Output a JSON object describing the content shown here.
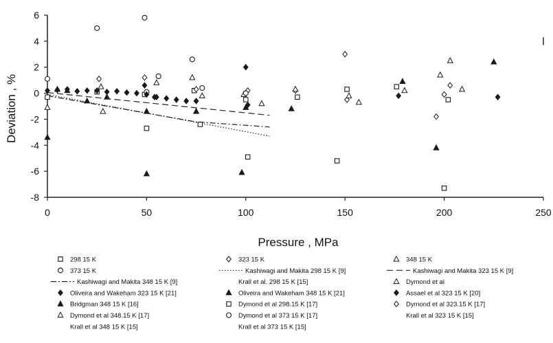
{
  "chart_data": {
    "type": "scatter",
    "title": "",
    "xlabel": "Pressure , MPa",
    "ylabel": "Deviation , %",
    "xlim": [
      0,
      250
    ],
    "ylim": [
      -8,
      6
    ],
    "x_ticks": [
      0,
      50,
      100,
      150,
      200,
      250
    ],
    "y_ticks": [
      -8,
      -6,
      -4,
      -2,
      0,
      2,
      4,
      6
    ],
    "x_tick_labels": [
      "0",
      "50",
      "100",
      "150",
      "200",
      "250"
    ],
    "y_tick_labels": [
      "-8",
      "-6",
      "-4",
      "-2",
      "0",
      "2",
      "4",
      "6"
    ],
    "grid": false,
    "legend_position": "bottom",
    "series": [
      {
        "name": "298 15 K",
        "marker": "square-open",
        "points": [
          [
            0,
            -0.3
          ],
          [
            25,
            0.1
          ],
          [
            49,
            -0.1
          ],
          [
            50,
            -2.7
          ],
          [
            74,
            0.2
          ],
          [
            77,
            -2.4
          ],
          [
            100,
            -0.5
          ],
          [
            101,
            -4.9
          ],
          [
            126,
            -0.3
          ],
          [
            146,
            -5.2
          ],
          [
            151,
            0.3
          ],
          [
            176,
            0.5
          ],
          [
            200,
            -7.3
          ],
          [
            202,
            -0.5
          ]
        ]
      },
      {
        "name": "323 15 K",
        "marker": "diamond-open",
        "points": [
          [
            26,
            1.1
          ],
          [
            49,
            1.2
          ],
          [
            75,
            0.3
          ],
          [
            101,
            0.2
          ],
          [
            125,
            0.2
          ],
          [
            150,
            3.0
          ],
          [
            151,
            -0.5
          ],
          [
            196,
            -1.8
          ],
          [
            200,
            -0.1
          ],
          [
            203,
            0.6
          ]
        ]
      },
      {
        "name": "348 15 K",
        "marker": "triangle-open",
        "points": [
          [
            0,
            -1.1
          ],
          [
            27,
            0.5
          ],
          [
            28,
            -1.4
          ],
          [
            55,
            0.8
          ],
          [
            73,
            1.2
          ],
          [
            78,
            -0.2
          ],
          [
            99,
            -0.1
          ],
          [
            108,
            -0.8
          ],
          [
            125,
            0.3
          ],
          [
            152,
            -0.2
          ],
          [
            157,
            -0.7
          ],
          [
            180,
            0.2
          ],
          [
            198,
            1.4
          ],
          [
            203,
            2.5
          ],
          [
            209,
            0.3
          ]
        ]
      },
      {
        "name": "373 15 K",
        "marker": "circle-open",
        "points": [
          [
            0,
            1.1
          ],
          [
            25,
            5.0
          ],
          [
            49,
            5.8
          ],
          [
            50,
            0.1
          ],
          [
            56,
            1.3
          ],
          [
            73,
            2.6
          ],
          [
            78,
            0.4
          ],
          [
            100,
            0.0
          ]
        ]
      },
      {
        "name": "Kashiwagi and Makita 298 15 K [9]",
        "style": "dotted-line",
        "points": [
          [
            0,
            -0.1
          ],
          [
            112,
            -3.3
          ]
        ]
      },
      {
        "name": "Kashiwagi and Makita 323 15 K [9]",
        "style": "dashed-line",
        "points": [
          [
            0,
            0.05
          ],
          [
            112,
            -1.7
          ]
        ]
      },
      {
        "name": "Kashiwagi and Makita 348 15 K [9]",
        "style": "dash-dot-line",
        "points": [
          [
            0,
            -0.2
          ],
          [
            75,
            -2.2
          ],
          [
            112,
            -2.6
          ]
        ]
      },
      {
        "name": "Krall et al. 298 15 K [15]",
        "style": "none",
        "points": []
      },
      {
        "name": "Dymond et al",
        "marker": "triangle-open",
        "points": []
      },
      {
        "name": "Oliveira and Wakeham 323 15 K [21]",
        "marker": "diamond-filled",
        "points": [
          [
            0,
            0.2
          ],
          [
            5,
            0.25
          ],
          [
            10,
            0.3
          ],
          [
            15,
            0.15
          ],
          [
            20,
            0.2
          ],
          [
            25,
            0.2
          ],
          [
            30,
            0.1
          ],
          [
            35,
            0.15
          ],
          [
            40,
            0.05
          ],
          [
            45,
            0.0
          ],
          [
            50,
            -0.1
          ],
          [
            55,
            -0.3
          ],
          [
            60,
            -0.4
          ],
          [
            65,
            -0.5
          ],
          [
            70,
            -0.6
          ],
          [
            75,
            -0.6
          ]
        ]
      },
      {
        "name": "Oliveira and Wakeham 348 15 K [21]",
        "marker": "triangle-filled",
        "points": [
          [
            0,
            -3.4
          ],
          [
            5,
            0.3
          ],
          [
            10,
            0.2
          ],
          [
            20,
            -0.6
          ],
          [
            30,
            -0.3
          ],
          [
            50,
            -6.2
          ],
          [
            50,
            -1.4
          ],
          [
            75,
            -1.4
          ],
          [
            98,
            -6.1
          ],
          [
            100,
            -1.1
          ],
          [
            123,
            -1.2
          ],
          [
            179,
            0.9
          ],
          [
            196,
            -4.2
          ],
          [
            225,
            2.4
          ]
        ]
      },
      {
        "name": "Assael et al 323 15 K [20]",
        "marker": "diamond-filled",
        "points": [
          [
            49,
            0.6
          ],
          [
            54,
            -0.3
          ],
          [
            100,
            2.0
          ],
          [
            101,
            -0.9
          ],
          [
            177,
            -0.2
          ],
          [
            227,
            -0.3
          ]
        ]
      },
      {
        "name": "Bridgman 348 15 K [16]",
        "marker": "triangle-filled",
        "points": []
      },
      {
        "name": "Dymond et al 298.15 K [17]",
        "marker": "square-open",
        "points": []
      },
      {
        "name": "Dymond et al 323.15 K [17]",
        "marker": "diamond-open",
        "points": []
      },
      {
        "name": "Dymond et al 348.15 K [17]",
        "marker": "triangle-open",
        "points": []
      },
      {
        "name": "Dymond et al 373 15 K [17]",
        "marker": "circle-open",
        "points": []
      },
      {
        "name": "Krall et al 323 15 K [15]",
        "style": "none",
        "points": []
      },
      {
        "name": "Krall et al 348 15 K [15]",
        "style": "none",
        "points": []
      },
      {
        "name": "Krall et al 373 15 K [15]",
        "style": "none",
        "points": []
      }
    ]
  },
  "legend": [
    {
      "label": "298 15 K",
      "symbol": "square-open"
    },
    {
      "label": "323 15 K",
      "symbol": "diamond-open"
    },
    {
      "label": "348 15 K",
      "symbol": "triangle-open"
    },
    {
      "label": "373 15 K",
      "symbol": "circle-open"
    },
    {
      "label": "Kashiwagi and Makita 298 15 K [9]",
      "symbol": "dotted-line"
    },
    {
      "label": "Kashiwagi and Makita 323 15 K [9]",
      "symbol": "dashed-line"
    },
    {
      "label": "Kashiwagi and Makita 348 15 K [9]",
      "symbol": "dash-dot-line"
    },
    {
      "label": "Krall et al. 298 15 K [15]",
      "symbol": "none"
    },
    {
      "label": "Dymond et al",
      "symbol": "triangle-open"
    },
    {
      "label": "Oliveira and Wakeham 323 15 K [21]",
      "symbol": "diamond-filled"
    },
    {
      "label": "Oliveira and Wakeham 348 15 K [21]",
      "symbol": "triangle-filled"
    },
    {
      "label": "Assael et al  323 15 K [20]",
      "symbol": "diamond-filled"
    },
    {
      "label": "Bridgman 348 15 K [16]",
      "symbol": "triangle-filled"
    },
    {
      "label": "Dymond et al  298.15 K [17]",
      "symbol": "square-open"
    },
    {
      "label": "Dymond et al  323.15 K [17]",
      "symbol": "diamond-open"
    },
    {
      "label": "Dymond et al  348.15 K [17]",
      "symbol": "triangle-open"
    },
    {
      "label": "Dymond et al  373 15 K [17]",
      "symbol": "circle-open"
    },
    {
      "label": "Krall et al  323 15 K [15]",
      "symbol": "none"
    },
    {
      "label": "Krall et al  348 15 K [15]",
      "symbol": "none"
    },
    {
      "label": "Krall et al  373 15 K [15]",
      "symbol": "none"
    }
  ]
}
